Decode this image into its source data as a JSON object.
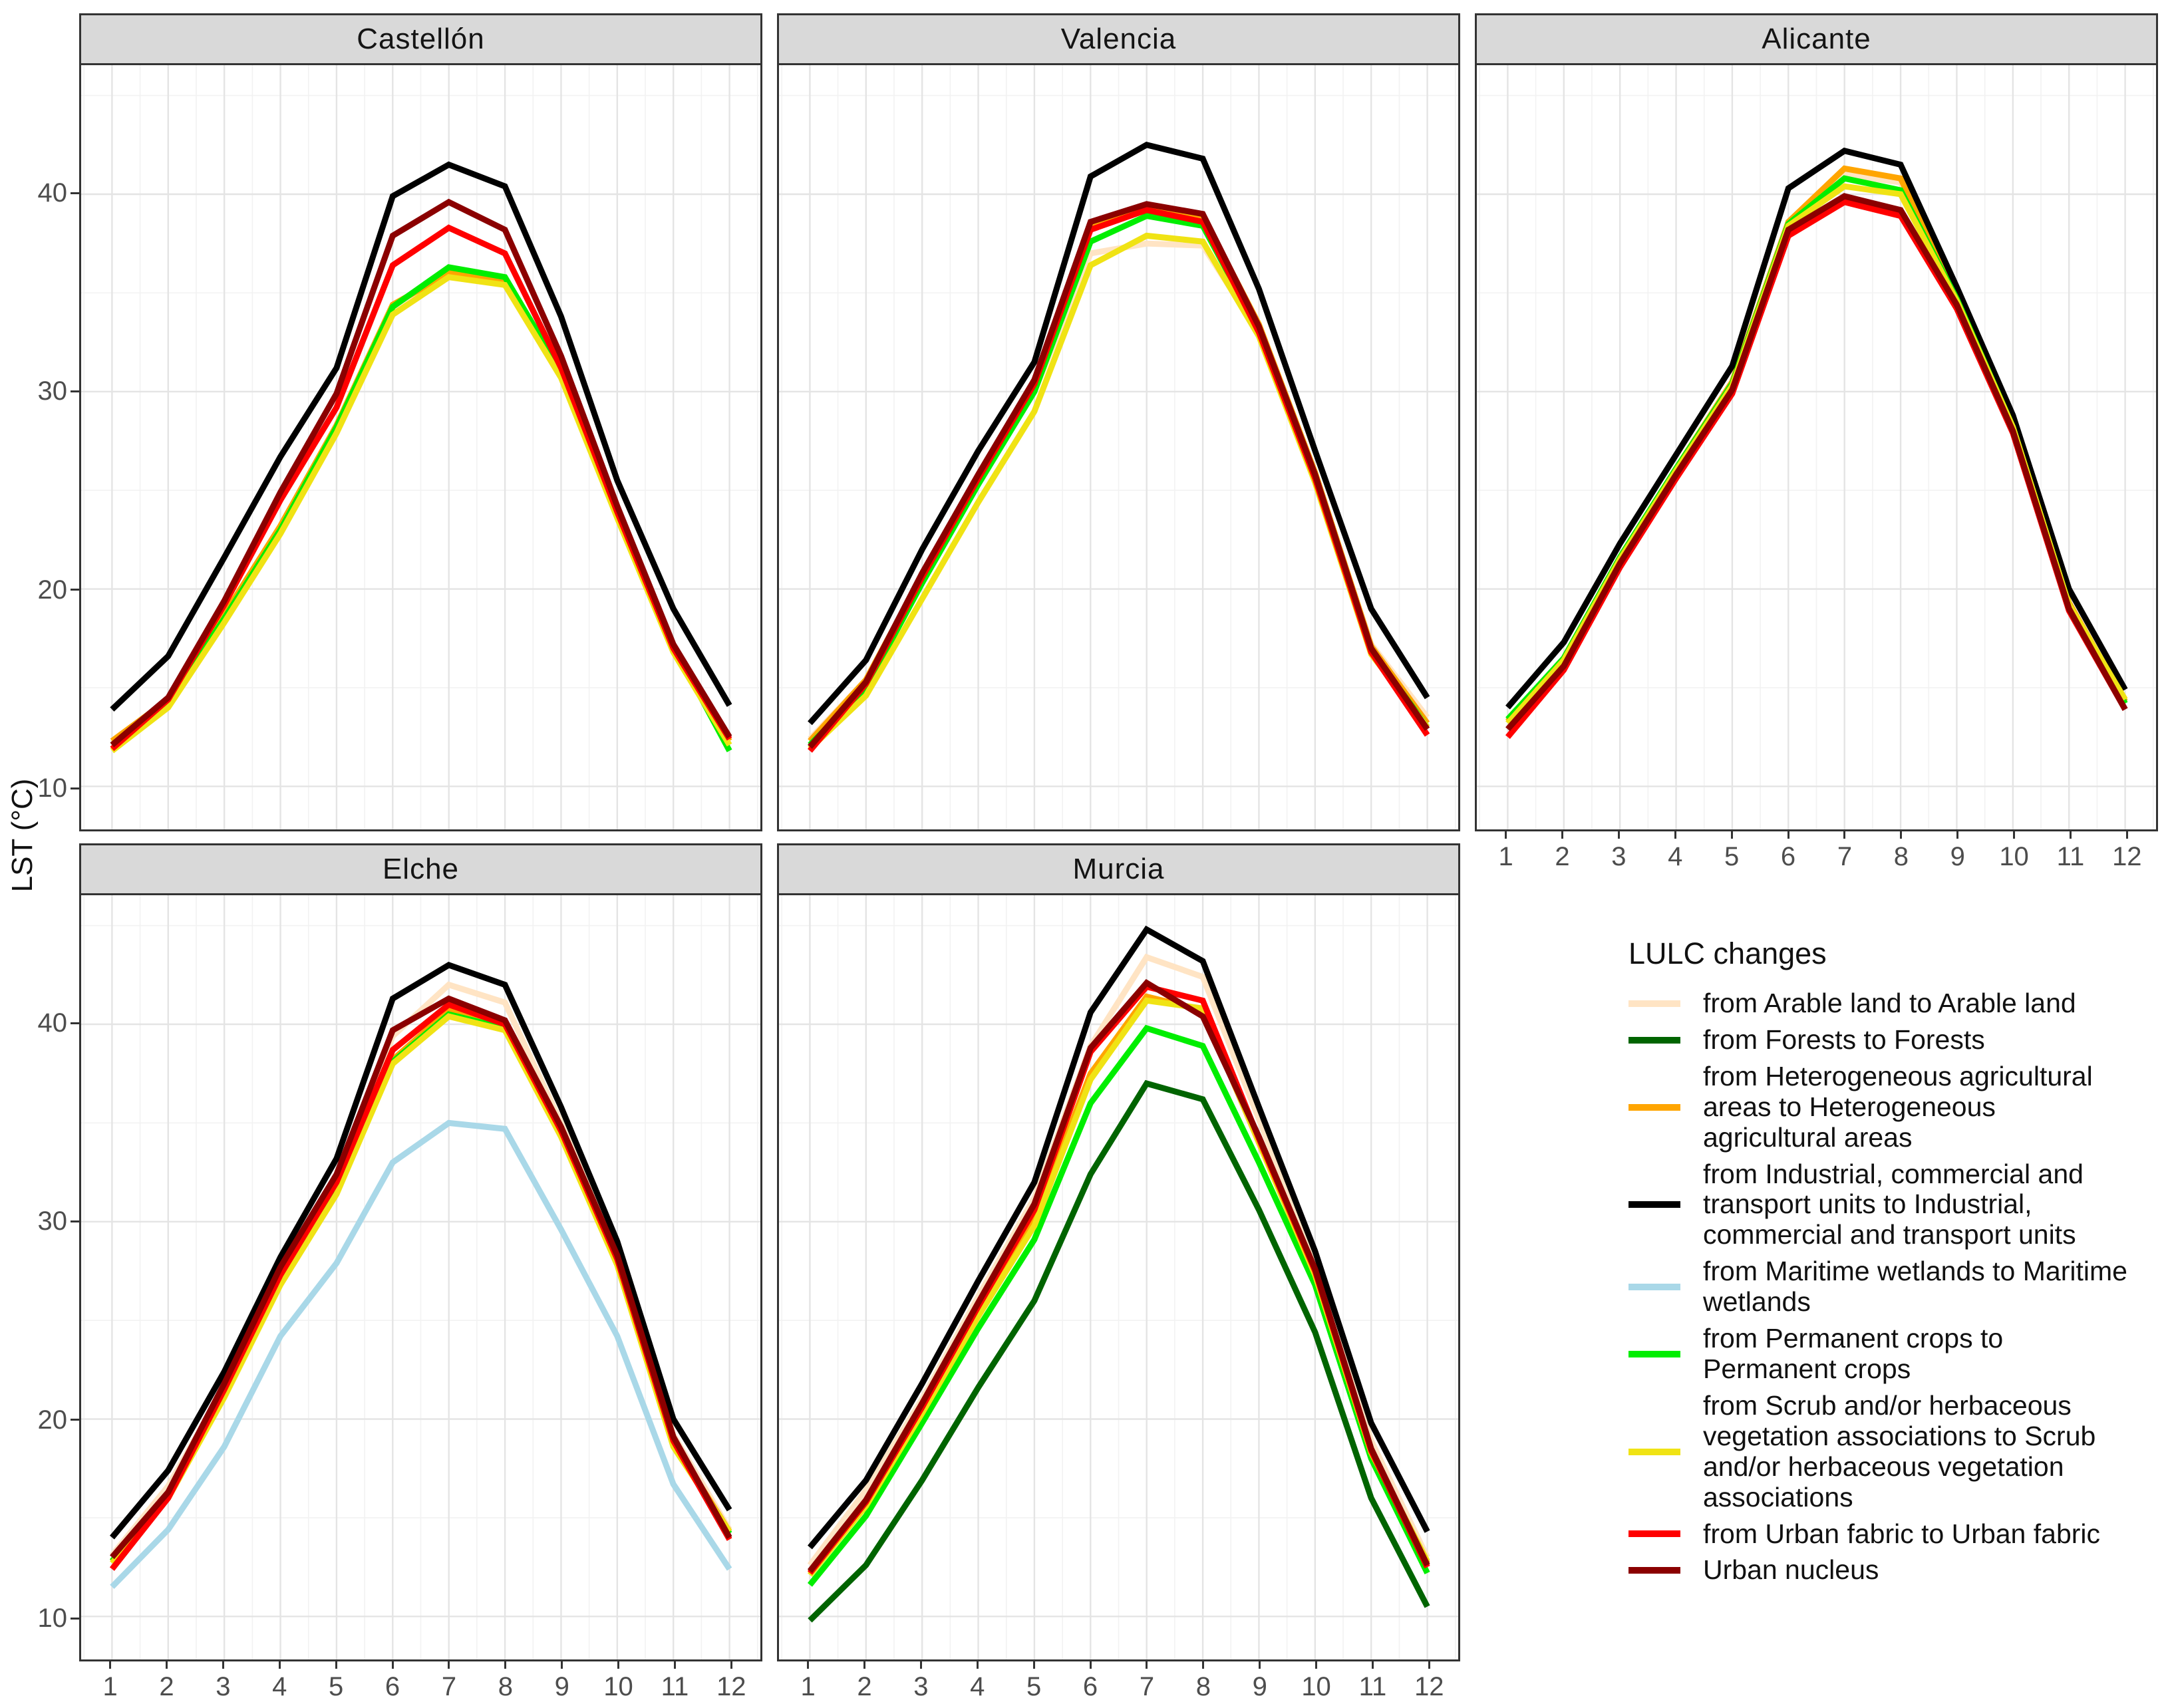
{
  "y_axis": {
    "title": "LST (°C)",
    "ticks": [
      10,
      20,
      30,
      40
    ]
  },
  "x_axis": {
    "ticks": [
      1,
      2,
      3,
      4,
      5,
      6,
      7,
      8,
      9,
      10,
      11,
      12
    ]
  },
  "legend": {
    "title": "LULC changes",
    "items": [
      {
        "key": "arable",
        "label": "from Arable land to Arable land",
        "color": "#FFE4C4"
      },
      {
        "key": "forests",
        "label": "from Forests to Forests",
        "color": "#006400"
      },
      {
        "key": "heterogeneous",
        "label": "from Heterogeneous agricultural areas to Heterogeneous agricultural areas",
        "color": "#FFA500"
      },
      {
        "key": "industrial",
        "label": "from Industrial, commercial and transport units to Industrial, commercial and transport units",
        "color": "#000000"
      },
      {
        "key": "maritime",
        "label": "from Maritime wetlands to Maritime wetlands",
        "color": "#A9D8E8"
      },
      {
        "key": "permanent",
        "label": "from Permanent crops to Permanent crops",
        "color": "#00EE00"
      },
      {
        "key": "scrub",
        "label": "from Scrub and/or herbaceous vegetation associations to Scrub and/or herbaceous vegetation associations",
        "color": "#F0E314"
      },
      {
        "key": "urban_fabric",
        "label": "from Urban fabric to Urban fabric",
        "color": "#FF0000"
      },
      {
        "key": "urban_nucleus",
        "label": "Urban nucleus",
        "color": "#8B0000"
      }
    ]
  },
  "chart_data": [
    {
      "type": "line",
      "title": "Castellón",
      "xlabel": "",
      "ylabel": "LST (°C)",
      "x": [
        1,
        2,
        3,
        4,
        5,
        6,
        7,
        8,
        9,
        10,
        11,
        12
      ],
      "x_ticks": [
        1,
        2,
        3,
        4,
        5,
        6,
        7,
        8,
        9,
        10,
        11,
        12
      ],
      "y_ticks": [
        10,
        20,
        30,
        40
      ],
      "xlim": [
        0.45,
        12.55
      ],
      "ylim": [
        7.7,
        46.5
      ],
      "grid": true,
      "show_x_axis": false,
      "show_y_axis": true,
      "series": [
        {
          "key": "arable",
          "name": "from Arable land to Arable land",
          "values": [
            12.2,
            14.3,
            18.6,
            23.1,
            28.2,
            34.2,
            35.9,
            35.5,
            30.8,
            23.7,
            16.9,
            12.3
          ]
        },
        {
          "key": "heterogeneous",
          "name": "from Heterogeneous agricultural areas to Heterogeneous agricultural areas",
          "values": [
            12.3,
            14.4,
            18.7,
            23.2,
            28.3,
            34.4,
            36.0,
            35.6,
            30.9,
            23.8,
            17.0,
            12.3
          ]
        },
        {
          "key": "industrial",
          "name": "from Industrial, commercial and transport units to Industrial, commercial and transport units",
          "values": [
            13.9,
            16.6,
            21.6,
            26.7,
            31.2,
            39.9,
            41.5,
            40.4,
            33.8,
            25.5,
            19.0,
            14.1
          ]
        },
        {
          "key": "permanent",
          "name": "from Permanent crops to Permanent crops",
          "values": [
            12.1,
            14.2,
            18.5,
            23.0,
            28.2,
            34.3,
            36.3,
            35.8,
            31.0,
            24.0,
            17.1,
            11.8
          ]
        },
        {
          "key": "scrub",
          "name": "from Scrub and/or herbaceous vegetation associations to Scrub and/or herbaceous vegetation associations",
          "values": [
            11.8,
            14.0,
            18.3,
            22.8,
            27.9,
            33.9,
            35.8,
            35.4,
            30.7,
            23.6,
            16.8,
            12.1
          ]
        },
        {
          "key": "urban_fabric",
          "name": "from Urban fabric to Urban fabric",
          "values": [
            11.9,
            14.4,
            19.2,
            24.5,
            29.2,
            36.4,
            38.3,
            37.0,
            31.2,
            23.9,
            17.0,
            12.4
          ]
        },
        {
          "key": "urban_nucleus",
          "name": "Urban nucleus",
          "values": [
            12.1,
            14.5,
            19.4,
            24.9,
            29.9,
            37.9,
            39.6,
            38.2,
            31.8,
            24.2,
            17.2,
            12.5
          ]
        }
      ]
    },
    {
      "type": "line",
      "title": "Valencia",
      "xlabel": "",
      "ylabel": "LST (°C)",
      "x": [
        1,
        2,
        3,
        4,
        5,
        6,
        7,
        8,
        9,
        10,
        11,
        12
      ],
      "x_ticks": [
        1,
        2,
        3,
        4,
        5,
        6,
        7,
        8,
        9,
        10,
        11,
        12
      ],
      "y_ticks": [
        10,
        20,
        30,
        40
      ],
      "xlim": [
        0.45,
        12.55
      ],
      "ylim": [
        7.7,
        46.5
      ],
      "grid": true,
      "show_x_axis": false,
      "show_y_axis": false,
      "series": [
        {
          "key": "arable",
          "name": "from Arable land to Arable land",
          "values": [
            12.4,
            15.4,
            20.5,
            25.4,
            30.0,
            37.0,
            37.5,
            37.4,
            33.0,
            25.7,
            17.2,
            13.5
          ]
        },
        {
          "key": "heterogeneous",
          "name": "from Heterogeneous agricultural areas to Heterogeneous agricultural areas",
          "values": [
            12.3,
            15.4,
            20.7,
            25.7,
            30.5,
            38.3,
            39.3,
            38.9,
            33.4,
            25.9,
            17.1,
            13.2
          ]
        },
        {
          "key": "industrial",
          "name": "from Industrial, commercial and transport units to Industrial, commercial and transport units",
          "values": [
            13.2,
            16.4,
            22.0,
            27.0,
            31.5,
            40.9,
            42.5,
            41.8,
            35.2,
            27.0,
            19.0,
            14.5
          ]
        },
        {
          "key": "permanent",
          "name": "from Permanent crops to Permanent crops",
          "values": [
            12.1,
            15.0,
            20.3,
            25.3,
            30.0,
            37.6,
            38.9,
            38.4,
            33.1,
            25.7,
            16.9,
            13.0
          ]
        },
        {
          "key": "scrub",
          "name": "from Scrub and/or herbaceous vegetation associations to Scrub and/or herbaceous vegetation associations",
          "values": [
            11.9,
            14.6,
            19.5,
            24.4,
            29.0,
            36.4,
            37.9,
            37.6,
            32.8,
            25.4,
            16.7,
            13.0
          ]
        },
        {
          "key": "urban_fabric",
          "name": "from Urban fabric to Urban fabric",
          "values": [
            11.8,
            15.2,
            20.6,
            25.6,
            30.4,
            38.2,
            39.2,
            38.6,
            33.0,
            25.6,
            16.8,
            12.6
          ]
        },
        {
          "key": "urban_nucleus",
          "name": "Urban nucleus",
          "values": [
            12.0,
            15.3,
            20.8,
            25.8,
            30.6,
            38.6,
            39.5,
            39.0,
            33.3,
            25.8,
            17.0,
            12.9
          ]
        }
      ]
    },
    {
      "type": "line",
      "title": "Alicante",
      "xlabel": "",
      "ylabel": "LST (°C)",
      "x": [
        1,
        2,
        3,
        4,
        5,
        6,
        7,
        8,
        9,
        10,
        11,
        12
      ],
      "x_ticks": [
        1,
        2,
        3,
        4,
        5,
        6,
        7,
        8,
        9,
        10,
        11,
        12
      ],
      "y_ticks": [
        10,
        20,
        30,
        40
      ],
      "xlim": [
        0.45,
        12.55
      ],
      "ylim": [
        7.7,
        46.5
      ],
      "grid": true,
      "show_x_axis": true,
      "show_y_axis": false,
      "series": [
        {
          "key": "arable",
          "name": "from Arable land to Arable land",
          "values": [
            13.3,
            16.5,
            21.5,
            26.0,
            30.4,
            38.5,
            41.0,
            40.6,
            34.7,
            28.3,
            19.3,
            14.3
          ]
        },
        {
          "key": "heterogeneous",
          "name": "from Heterogeneous agricultural areas to Heterogeneous agricultural areas",
          "values": [
            13.3,
            16.5,
            21.6,
            26.1,
            30.5,
            38.6,
            41.3,
            40.8,
            34.8,
            28.3,
            19.3,
            14.3
          ]
        },
        {
          "key": "industrial",
          "name": "from Industrial, commercial and transport units to Industrial, commercial and transport units",
          "values": [
            14.0,
            17.3,
            22.3,
            26.8,
            31.3,
            40.3,
            42.2,
            41.5,
            35.3,
            28.8,
            20.0,
            14.9
          ]
        },
        {
          "key": "permanent",
          "name": "from Permanent crops to Permanent crops",
          "values": [
            13.4,
            16.5,
            21.6,
            26.1,
            30.4,
            38.5,
            40.8,
            40.2,
            34.7,
            28.2,
            19.2,
            14.2
          ]
        },
        {
          "key": "scrub",
          "name": "from Scrub and/or herbaceous vegetation associations to Scrub and/or herbaceous vegetation associations",
          "values": [
            13.2,
            16.4,
            21.5,
            26.0,
            30.3,
            38.4,
            40.4,
            40.0,
            34.6,
            28.2,
            19.2,
            14.4
          ]
        },
        {
          "key": "urban_fabric",
          "name": "from Urban fabric to Urban fabric",
          "values": [
            12.5,
            15.9,
            21.1,
            25.6,
            29.9,
            37.9,
            39.6,
            38.9,
            34.2,
            27.9,
            18.9,
            13.9
          ]
        },
        {
          "key": "urban_nucleus",
          "name": "Urban nucleus",
          "values": [
            12.9,
            16.1,
            21.3,
            25.8,
            30.1,
            38.2,
            39.9,
            39.2,
            34.4,
            28.0,
            19.0,
            13.9
          ]
        }
      ]
    },
    {
      "type": "line",
      "title": "Elche",
      "xlabel": "",
      "ylabel": "LST (°C)",
      "x": [
        1,
        2,
        3,
        4,
        5,
        6,
        7,
        8,
        9,
        10,
        11,
        12
      ],
      "x_ticks": [
        1,
        2,
        3,
        4,
        5,
        6,
        7,
        8,
        9,
        10,
        11,
        12
      ],
      "y_ticks": [
        10,
        20,
        30,
        40
      ],
      "xlim": [
        0.45,
        12.55
      ],
      "ylim": [
        7.7,
        46.5
      ],
      "grid": true,
      "show_x_axis": true,
      "show_y_axis": true,
      "series": [
        {
          "key": "arable",
          "name": "from Arable land to Arable land",
          "values": [
            13.1,
            16.6,
            21.6,
            27.4,
            32.2,
            39.4,
            42.0,
            41.1,
            35.0,
            28.4,
            19.2,
            14.4
          ]
        },
        {
          "key": "heterogeneous",
          "name": "from Heterogeneous agricultural areas to Heterogeneous agricultural areas",
          "values": [
            12.8,
            16.1,
            21.3,
            27.0,
            31.6,
            38.2,
            40.7,
            39.9,
            34.5,
            28.0,
            18.8,
            14.3
          ]
        },
        {
          "key": "industrial",
          "name": "from Industrial, commercial and transport units to Industrial, commercial and transport units",
          "values": [
            14.0,
            17.4,
            22.4,
            28.2,
            33.2,
            41.3,
            43.0,
            42.0,
            35.8,
            29.0,
            20.0,
            15.4
          ]
        },
        {
          "key": "maritime",
          "name": "from Maritime wetlands to Maritime wetlands",
          "values": [
            11.5,
            14.4,
            18.6,
            24.2,
            27.9,
            33.0,
            35.0,
            34.7,
            29.6,
            24.2,
            16.7,
            12.4
          ]
        },
        {
          "key": "permanent",
          "name": "from Permanent crops to Permanent crops",
          "values": [
            12.8,
            16.1,
            21.2,
            26.9,
            31.5,
            38.1,
            40.5,
            39.8,
            34.4,
            27.9,
            18.7,
            14.2
          ]
        },
        {
          "key": "scrub",
          "name": "from Scrub and/or herbaceous vegetation associations to Scrub and/or herbaceous vegetation associations",
          "values": [
            12.7,
            16.0,
            21.1,
            26.8,
            31.4,
            38.0,
            40.4,
            39.7,
            34.3,
            27.8,
            18.6,
            14.3
          ]
        },
        {
          "key": "urban_fabric",
          "name": "from Urban fabric to Urban fabric",
          "values": [
            12.4,
            16.0,
            21.5,
            27.3,
            32.0,
            38.7,
            41.0,
            40.0,
            34.6,
            28.1,
            18.9,
            13.9
          ]
        },
        {
          "key": "urban_nucleus",
          "name": "Urban nucleus",
          "values": [
            13.0,
            16.3,
            21.8,
            27.7,
            32.4,
            39.7,
            41.3,
            40.2,
            34.8,
            28.3,
            19.1,
            14.0
          ]
        }
      ]
    },
    {
      "type": "line",
      "title": "Murcia",
      "xlabel": "",
      "ylabel": "LST (°C)",
      "x": [
        1,
        2,
        3,
        4,
        5,
        6,
        7,
        8,
        9,
        10,
        11,
        12
      ],
      "x_ticks": [
        1,
        2,
        3,
        4,
        5,
        6,
        7,
        8,
        9,
        10,
        11,
        12
      ],
      "y_ticks": [
        10,
        20,
        30,
        40
      ],
      "xlim": [
        0.45,
        12.55
      ],
      "ylim": [
        7.7,
        46.5
      ],
      "grid": true,
      "show_x_axis": true,
      "show_y_axis": false,
      "series": [
        {
          "key": "arable",
          "name": "from Arable land to Arable land",
          "values": [
            12.6,
            16.4,
            21.0,
            26.2,
            31.2,
            38.9,
            43.4,
            42.4,
            35.2,
            28.0,
            18.9,
            13.0
          ]
        },
        {
          "key": "forests",
          "name": "from Forests to Forests",
          "values": [
            9.8,
            12.6,
            16.9,
            21.6,
            26.0,
            32.4,
            37.0,
            36.2,
            30.6,
            24.4,
            16.0,
            10.5
          ]
        },
        {
          "key": "heterogeneous",
          "name": "from Heterogeneous agricultural areas to Heterogeneous agricultural areas",
          "values": [
            12.2,
            15.7,
            20.4,
            25.4,
            30.1,
            37.5,
            41.4,
            40.7,
            34.0,
            27.4,
            18.3,
            12.7
          ]
        },
        {
          "key": "industrial",
          "name": "from Industrial, commercial and transport units to Industrial, commercial and transport units",
          "values": [
            13.5,
            16.9,
            21.8,
            27.0,
            32.0,
            40.6,
            44.8,
            43.2,
            35.8,
            28.5,
            19.8,
            14.3
          ]
        },
        {
          "key": "permanent",
          "name": "from Permanent crops to Permanent crops",
          "values": [
            11.6,
            15.1,
            19.8,
            24.6,
            29.1,
            36.0,
            39.8,
            38.9,
            33.0,
            26.8,
            18.0,
            12.2
          ]
        },
        {
          "key": "scrub",
          "name": "from Scrub and/or herbaceous vegetation associations to Scrub and/or herbaceous vegetation associations",
          "values": [
            12.1,
            15.6,
            20.3,
            25.2,
            29.8,
            37.2,
            41.2,
            40.8,
            34.0,
            27.3,
            18.3,
            12.8
          ]
        },
        {
          "key": "urban_fabric",
          "name": "from Urban fabric to Urban fabric",
          "values": [
            12.2,
            15.8,
            20.6,
            25.7,
            30.6,
            38.6,
            41.9,
            41.2,
            34.2,
            27.5,
            18.4,
            12.5
          ]
        },
        {
          "key": "urban_nucleus",
          "name": "Urban nucleus",
          "values": [
            12.3,
            15.9,
            20.8,
            25.9,
            30.9,
            38.8,
            42.1,
            40.4,
            34.3,
            27.6,
            18.5,
            12.6
          ]
        }
      ]
    }
  ],
  "style": {
    "panel_border": "#333333",
    "grid_major": "#e4e4e4",
    "grid_minor": "#f2f2f2",
    "strip_bg": "#d9d9d9",
    "tick_label": "#4d4d4d",
    "line_width": 9
  }
}
